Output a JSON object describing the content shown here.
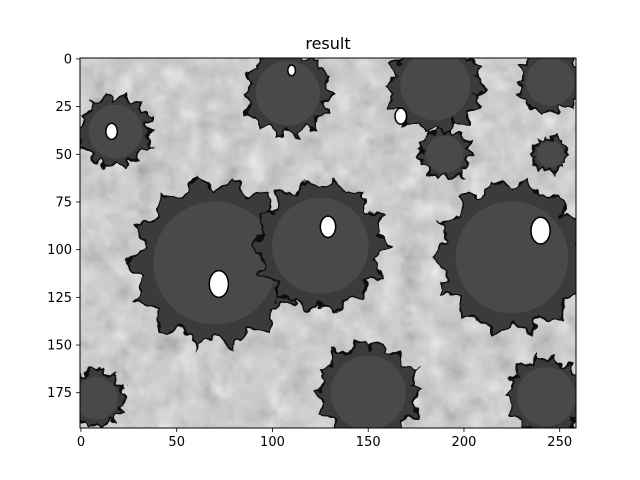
{
  "chart_data": {
    "type": "heatmap",
    "title": "result",
    "xlabel": "",
    "ylabel": "",
    "colormap": "gray",
    "image_shape": [
      194,
      259
    ],
    "xlim": [
      -0.5,
      258.5
    ],
    "ylim": [
      193.5,
      -0.5
    ],
    "x_ticks": [
      0,
      50,
      100,
      150,
      200,
      250
    ],
    "y_ticks": [
      0,
      25,
      50,
      75,
      100,
      125,
      150,
      175
    ],
    "dark_regions": [
      {
        "label": "blob",
        "cx": 18,
        "cy": 38,
        "r": 20,
        "hole": {
          "cx": 16,
          "cy": 38,
          "r": 3
        }
      },
      {
        "label": "blob",
        "cx": 70,
        "cy": 107,
        "r": 46,
        "hole": {
          "cx": 72,
          "cy": 118,
          "r": 5
        }
      },
      {
        "label": "blob",
        "cx": 125,
        "cy": 98,
        "r": 36,
        "hole": {
          "cx": 129,
          "cy": 88,
          "r": 4
        }
      },
      {
        "label": "blob",
        "cx": 108,
        "cy": 18,
        "r": 24,
        "hole": {
          "cx": 110,
          "cy": 6,
          "r": 2
        }
      },
      {
        "label": "blob",
        "cx": 225,
        "cy": 104,
        "r": 42,
        "hole": {
          "cx": 240,
          "cy": 90,
          "r": 5
        }
      },
      {
        "label": "blob",
        "cx": 150,
        "cy": 175,
        "r": 28,
        "hole": null
      },
      {
        "label": "blob",
        "cx": 243,
        "cy": 177,
        "r": 22,
        "hole": null
      },
      {
        "label": "blob",
        "cx": 185,
        "cy": 14,
        "r": 26,
        "hole": {
          "cx": 167,
          "cy": 30,
          "r": 3
        }
      },
      {
        "label": "blob",
        "cx": 8,
        "cy": 178,
        "r": 16,
        "hole": null
      },
      {
        "label": "blob",
        "cx": 245,
        "cy": 12,
        "r": 18,
        "hole": null
      },
      {
        "label": "blob",
        "cx": 190,
        "cy": 50,
        "r": 14,
        "hole": null
      },
      {
        "label": "blob",
        "cx": 245,
        "cy": 50,
        "r": 10,
        "hole": null
      }
    ]
  }
}
